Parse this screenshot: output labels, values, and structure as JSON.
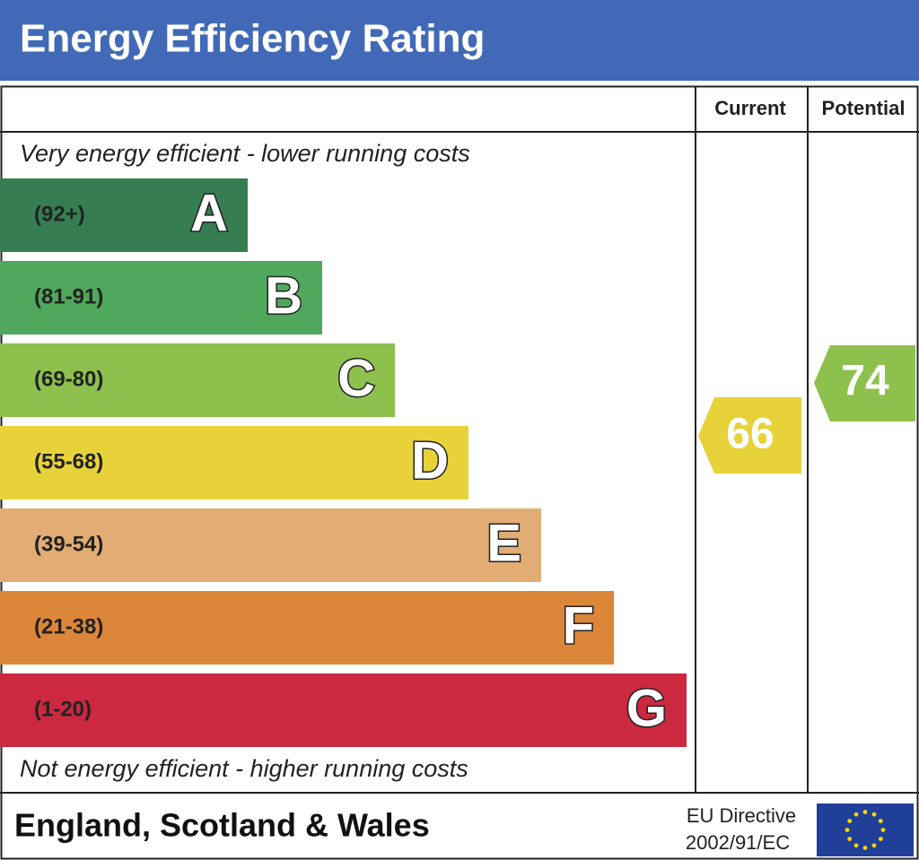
{
  "header": {
    "title": "Energy Efficiency Rating"
  },
  "columns": {
    "current": "Current",
    "potential": "Potential"
  },
  "top_note": "Very energy efficient - lower running costs",
  "bottom_note": "Not energy efficient - higher running costs",
  "bands": [
    {
      "range": "(92+)",
      "letter": "A"
    },
    {
      "range": "(81-91)",
      "letter": "B"
    },
    {
      "range": "(69-80)",
      "letter": "C"
    },
    {
      "range": "(55-68)",
      "letter": "D"
    },
    {
      "range": "(39-54)",
      "letter": "E"
    },
    {
      "range": "(21-38)",
      "letter": "F"
    },
    {
      "range": "(1-20)",
      "letter": "G"
    }
  ],
  "ratings": {
    "current": "66",
    "potential": "74"
  },
  "footer": {
    "region": "England, Scotland & Wales",
    "directive_line1": "EU Directive",
    "directive_line2": "2002/91/EC"
  }
}
